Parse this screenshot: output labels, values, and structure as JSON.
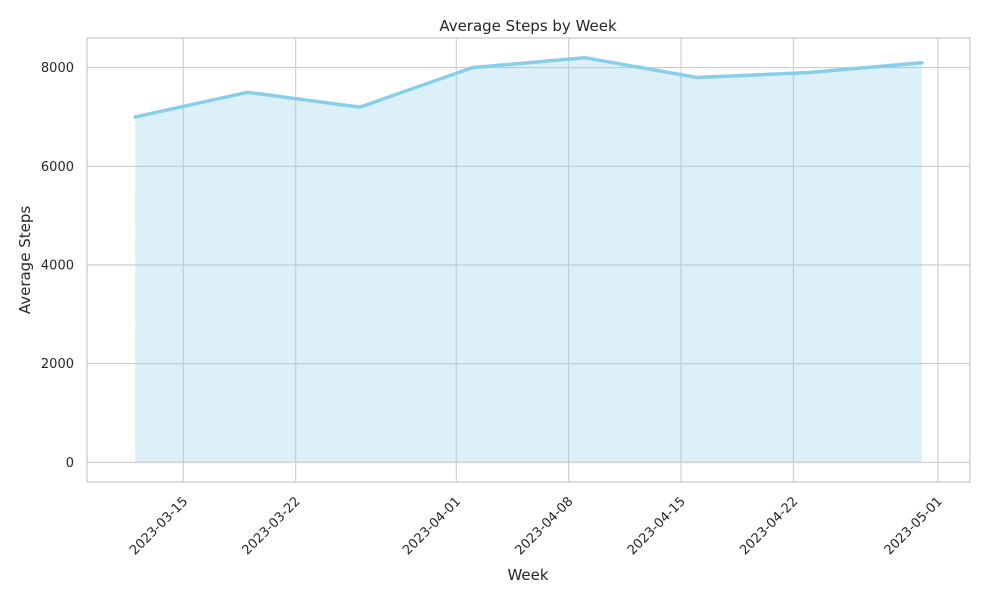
{
  "chart_data": {
    "type": "area",
    "title": "Average Steps by Week",
    "xlabel": "Week",
    "ylabel": "Average Steps",
    "x": [
      "2023-03-12",
      "2023-03-19",
      "2023-03-26",
      "2023-04-02",
      "2023-04-09",
      "2023-04-16",
      "2023-04-23",
      "2023-04-30"
    ],
    "series": [
      {
        "values": [
          7000,
          7500,
          7200,
          8000,
          8200,
          7800,
          7900,
          8100
        ]
      }
    ],
    "xticks": [
      "2023-03-15",
      "2023-03-22",
      "2023-04-01",
      "2023-04-08",
      "2023-04-15",
      "2023-04-22",
      "2023-05-01"
    ],
    "yticks": [
      0,
      2000,
      4000,
      6000,
      8000
    ],
    "xlim": [
      "2023-03-09",
      "2023-05-03"
    ],
    "ylim": [
      -400,
      8600
    ],
    "grid": true,
    "line_color": "#87CEEB",
    "fill_color": "#87CEEB"
  }
}
